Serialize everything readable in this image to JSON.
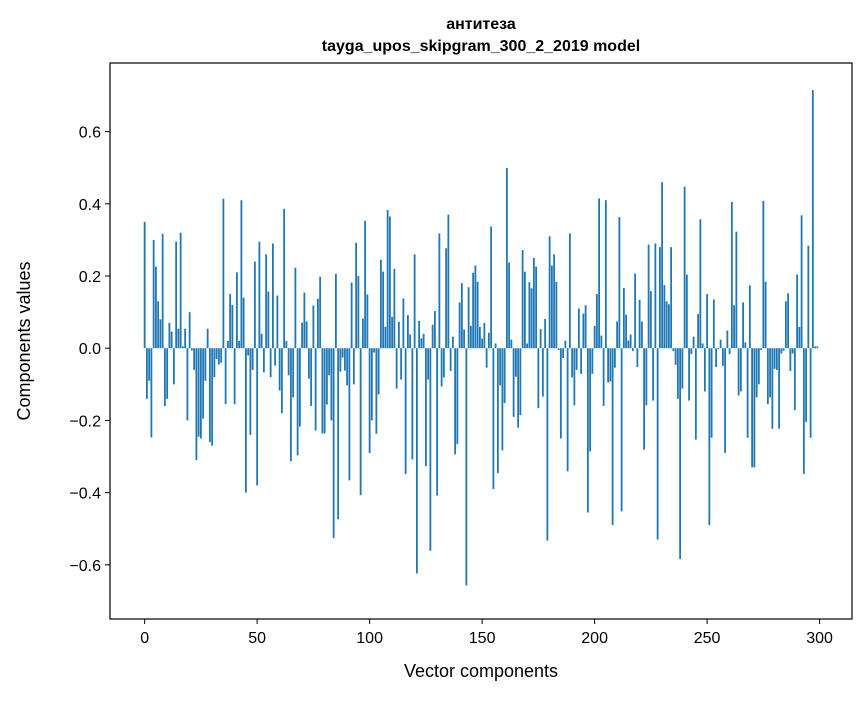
{
  "chart_data": {
    "type": "bar",
    "title": "антитеза",
    "subtitle": "tayga_upos_skipgram_300_2_2019 model",
    "xlabel": "Vector components",
    "ylabel": "Components values",
    "xlim": [
      -15.4,
      314.4
    ],
    "ylim": [
      -0.75,
      0.79
    ],
    "xticks": [
      0,
      50,
      100,
      150,
      200,
      250,
      300
    ],
    "xtick_labels": [
      "0",
      "50",
      "100",
      "150",
      "200",
      "250",
      "300"
    ],
    "yticks": [
      -0.6,
      -0.4,
      -0.2,
      0.0,
      0.2,
      0.4,
      0.6
    ],
    "ytick_labels": [
      "−0.6",
      "−0.4",
      "−0.2",
      "0.0",
      "0.2",
      "0.4",
      "0.6"
    ],
    "grid": false,
    "bar_color": "#1f77b4",
    "values": [
      0.35,
      -0.14,
      -0.09,
      -0.247,
      0.3,
      0.226,
      0.13,
      0.08,
      0.317,
      -0.16,
      -0.14,
      0.07,
      0.046,
      -0.1,
      0.295,
      0.054,
      0.32,
      0.005,
      0.054,
      -0.2,
      0.1,
      -0.006,
      -0.06,
      -0.31,
      -0.245,
      -0.25,
      -0.195,
      -0.09,
      0.054,
      -0.26,
      -0.27,
      -0.08,
      -0.03,
      -0.045,
      -0.04,
      0.414,
      -0.155,
      0.02,
      0.15,
      0.12,
      -0.155,
      0.21,
      0.02,
      0.41,
      0.14,
      -0.4,
      -0.02,
      -0.24,
      -0.06,
      0.24,
      -0.38,
      0.295,
      0.04,
      -0.067,
      0.26,
      0.157,
      -0.08,
      0.29,
      -0.048,
      0.146,
      -0.117,
      -0.18,
      0.386,
      0.02,
      -0.075,
      -0.313,
      -0.136,
      0.223,
      -0.297,
      -0.217,
      0.071,
      0.154,
      0.074,
      -0.084,
      -0.16,
      0.118,
      -0.228,
      0.137,
      0.198,
      -0.236,
      -0.236,
      -0.156,
      -0.075,
      -0.2,
      -0.526,
      0.206,
      -0.474,
      -0.065,
      -0.026,
      -0.062,
      -0.103,
      -0.366,
      0.182,
      -0.1,
      0.292,
      0.2,
      -0.407,
      0.082,
      0.353,
      0.149,
      -0.29,
      -0.2,
      -0.012,
      -0.237,
      -0.128,
      0.245,
      0.212,
      0.059,
      0.383,
      0.365,
      0.087,
      0.22,
      -0.112,
      0.073,
      -0.087,
      0.138,
      -0.348,
      0.092,
      0.038,
      -0.308,
      0.26,
      -0.624,
      0.076,
      0.027,
      0.04,
      -0.327,
      -0.087,
      -0.561,
      0.065,
      0.103,
      -0.408,
      0.318,
      -0.106,
      -0.081,
      0.277,
      0.37,
      -0.063,
      0.032,
      -0.294,
      -0.265,
      0.127,
      0.18,
      0.052,
      -0.657,
      0.169,
      0.062,
      0.209,
      0.229,
      0.184,
      0.059,
      0.027,
      0.07,
      -0.054,
      0.043,
      0.337,
      -0.39,
      0.013,
      -0.346,
      -0.103,
      -0.283,
      -0.152,
      0.499,
      0.237,
      0.024,
      -0.19,
      -0.079,
      -0.22,
      -0.185,
      0.272,
      0.212,
      0.013,
      0.183,
      0.166,
      0.25,
      0.226,
      -0.166,
      0.053,
      -0.134,
      0.081,
      -0.533,
      0.31,
      0.229,
      0.26,
      0.184,
      -0.005,
      -0.25,
      -0.027,
      0.021,
      -0.341,
      0.318,
      -0.081,
      -0.158,
      -0.06,
      0.11,
      -0.071,
      0.096,
      0.119,
      -0.455,
      -0.286,
      -0.071,
      0.062,
      0.15,
      0.415,
      0.035,
      -0.16,
      0.41,
      -0.095,
      -0.092,
      -0.49,
      -0.054,
      0.074,
      0.363,
      -0.452,
      0.167,
      0.093,
      0.021,
      0.038,
      -0.008,
      0.207,
      -0.052,
      0.134,
      0.074,
      -0.281,
      -0.158,
      0.287,
      0.158,
      -0.145,
      0.29,
      -0.53,
      0.28,
      0.46,
      0.175,
      0.13,
      0.122,
      0.28,
      -0.008,
      -0.046,
      -0.14,
      -0.584,
      -0.112,
      0.447,
      0.204,
      -0.145,
      -0.016,
      0.032,
      -0.253,
      0.095,
      0.357,
      0.013,
      -0.12,
      0.15,
      -0.49,
      -0.248,
      0.135,
      -0.052,
      -0.003,
      0.024,
      -0.049,
      -0.29,
      0.049,
      -0.016,
      0.405,
      0.119,
      0.323,
      -0.131,
      -0.12,
      0.127,
      0.016,
      -0.248,
      0.174,
      -0.33,
      -0.33,
      -0.136,
      -0.1,
      -0.005,
      0.408,
      0.184,
      -0.155,
      -0.136,
      -0.223,
      -0.057,
      -0.06,
      -0.223,
      -0.015,
      -0.007,
      0.13,
      0.152,
      -0.063,
      -0.015,
      -0.171,
      0.204,
      0.059,
      0.368,
      -0.348,
      -0.204,
      0.284,
      -0.248,
      0.715,
      0.005,
      0.005
    ]
  }
}
